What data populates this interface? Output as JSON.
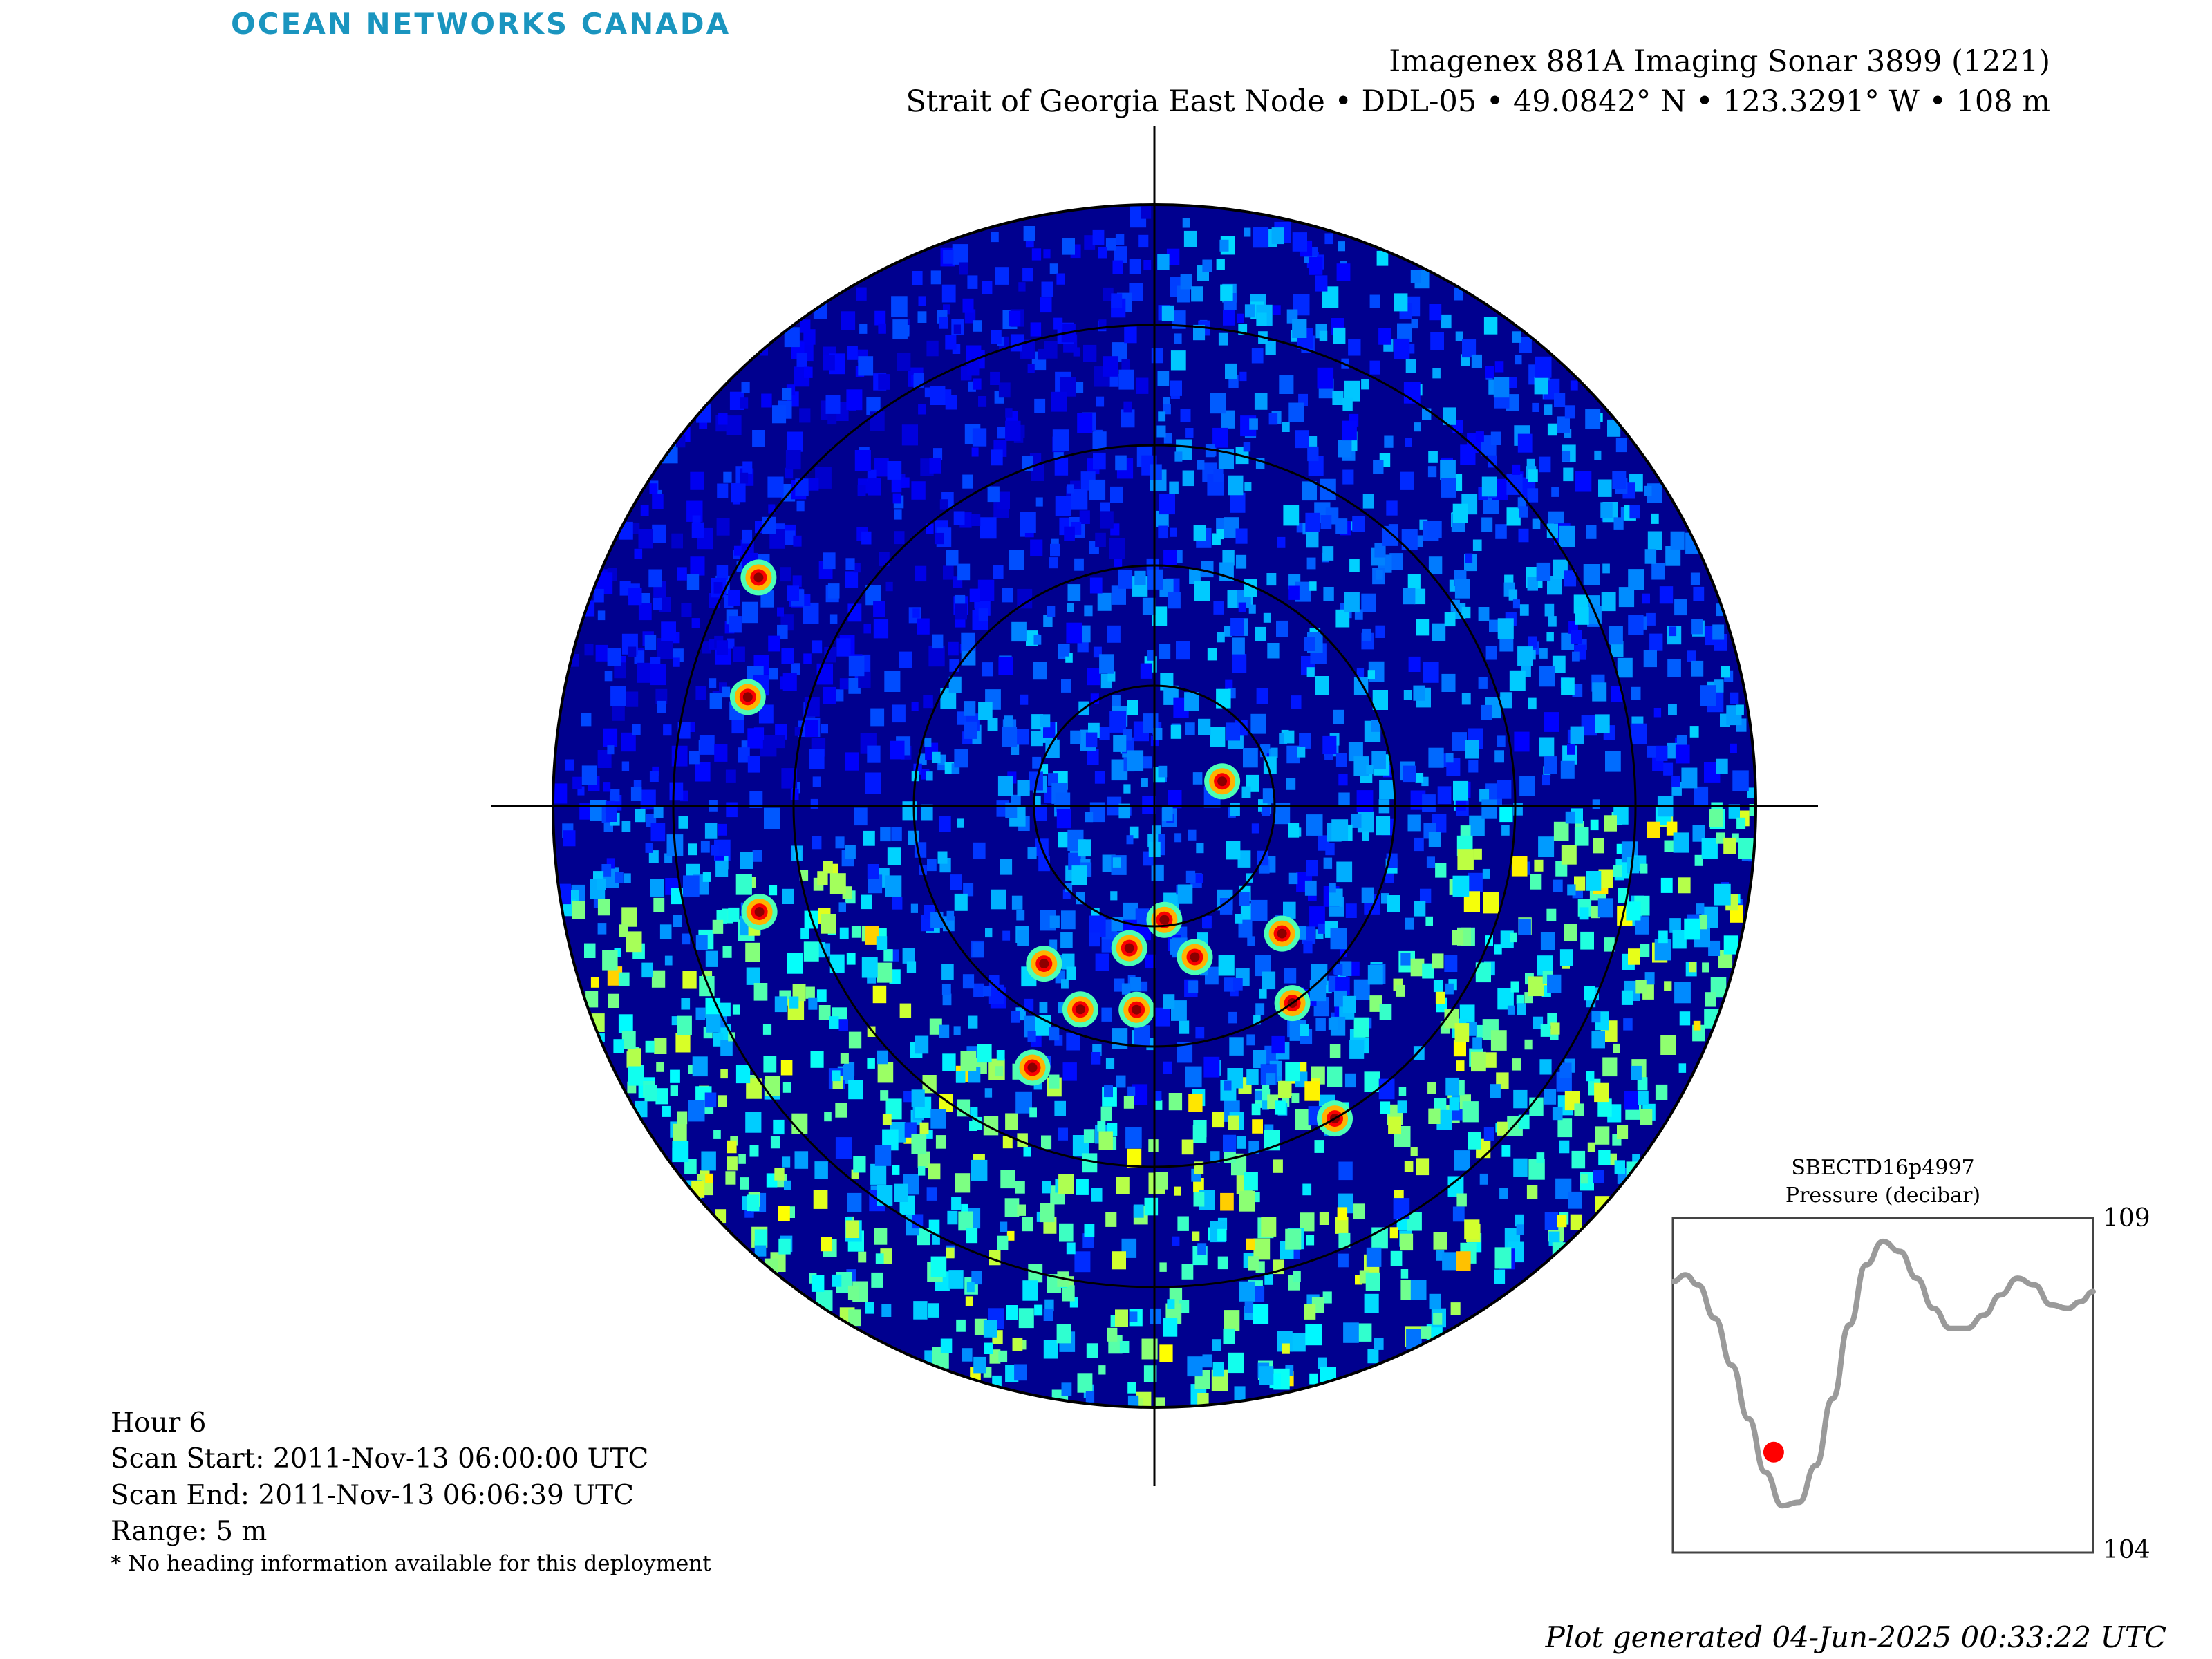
{
  "brand": {
    "logo_text": "OCEAN NETWORKS CANADA",
    "color": "#1a95bf"
  },
  "header": {
    "title": "Imagenex 881A Imaging Sonar 3899 (1221)",
    "subtitle": "Strait of Georgia East Node • DDL-05 • 49.0842° N • 123.3291° W • 108 m"
  },
  "scan_info": {
    "hour": "Hour 6",
    "scan_start": "Scan Start: 2011-Nov-13 06:00:00 UTC",
    "scan_end": "Scan End: 2011-Nov-13 06:06:39 UTC",
    "range": "Range: 5 m",
    "note": "* No heading information available for this deployment"
  },
  "footer": {
    "generated": "Plot generated 04-Jun-2025 00:33:22 UTC"
  },
  "chart_data": [
    {
      "type": "heatmap",
      "subtype": "polar-sonar",
      "range_m": 5,
      "range_rings_m": [
        1,
        2,
        3,
        4,
        5
      ],
      "colormap": "jet",
      "background_color": "#00008f",
      "grid": true,
      "strong_returns_deg_range": [
        {
          "angle_deg": 175,
          "range_m": 0.95
        },
        {
          "angle_deg": 70,
          "range_m": 0.6
        },
        {
          "angle_deg": 150,
          "range_m": 3.0
        },
        {
          "angle_deg": 135,
          "range_m": 1.5
        },
        {
          "angle_deg": 145,
          "range_m": 2.0
        },
        {
          "angle_deg": 215,
          "range_m": 1.6
        },
        {
          "angle_deg": 200,
          "range_m": 1.8
        },
        {
          "angle_deg": 185,
          "range_m": 1.7
        },
        {
          "angle_deg": 165,
          "range_m": 1.3
        },
        {
          "angle_deg": 190,
          "range_m": 1.2
        },
        {
          "angle_deg": 205,
          "range_m": 2.4
        },
        {
          "angle_deg": 255,
          "range_m": 3.4
        },
        {
          "angle_deg": 285,
          "range_m": 3.5
        },
        {
          "angle_deg": 300,
          "range_m": 3.8
        }
      ]
    },
    {
      "type": "line",
      "title": "SBECTD16p4997",
      "ylabel": "Pressure (decibar)",
      "ytick_labels": [
        "109",
        "104"
      ],
      "ylim": [
        104,
        109
      ],
      "line_color": "#9a9a9a",
      "marker_color": "#ff0000",
      "x": [
        0,
        0.03,
        0.06,
        0.1,
        0.14,
        0.18,
        0.22,
        0.26,
        0.3,
        0.34,
        0.38,
        0.42,
        0.46,
        0.5,
        0.54,
        0.58,
        0.62,
        0.66,
        0.7,
        0.74,
        0.78,
        0.82,
        0.86,
        0.9,
        0.94,
        0.97,
        1.0
      ],
      "y": [
        108.05,
        108.15,
        108.0,
        107.5,
        106.8,
        106.0,
        105.2,
        104.7,
        104.75,
        105.3,
        106.3,
        107.4,
        108.3,
        108.65,
        108.5,
        108.1,
        107.65,
        107.35,
        107.35,
        107.55,
        107.85,
        108.1,
        108.0,
        107.7,
        107.65,
        107.75,
        107.9
      ],
      "marker": {
        "x": 0.24,
        "y": 105.5
      }
    }
  ]
}
